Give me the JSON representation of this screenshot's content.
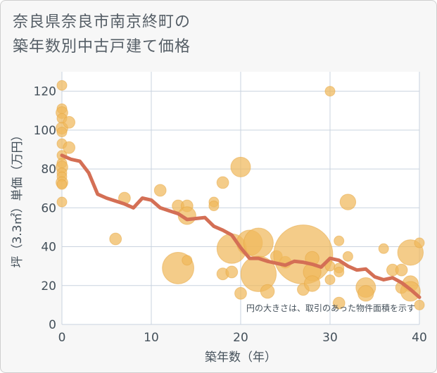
{
  "chart_data": {
    "type": "scatter",
    "title_lines": [
      "奈良県奈良市南京終町の",
      "築年数別中古戸建て価格"
    ],
    "xlabel": "築年数（年）",
    "ylabel": "坪（3.3㎡）単価（万円）",
    "xlim": [
      0,
      40
    ],
    "ylim": [
      0,
      130
    ],
    "x_ticks": [
      0,
      10,
      20,
      30,
      40
    ],
    "y_ticks": [
      0,
      20,
      40,
      60,
      80,
      100,
      120
    ],
    "note": "円の大きさは、取引のあった物件面積を示す",
    "colors": {
      "bubble": "#f0b85c",
      "line": "#d46f55",
      "grid": "#c9d3df",
      "text": "#44505a"
    },
    "bubbles": [
      {
        "x": 0,
        "y": 123,
        "s": 1.0
      },
      {
        "x": 0,
        "y": 111,
        "s": 1.0
      },
      {
        "x": 0,
        "y": 109,
        "s": 1.2
      },
      {
        "x": 0,
        "y": 106,
        "s": 1.0
      },
      {
        "x": 0,
        "y": 101,
        "s": 1.2
      },
      {
        "x": 0,
        "y": 99,
        "s": 1.0
      },
      {
        "x": 0,
        "y": 93,
        "s": 1.0
      },
      {
        "x": 0,
        "y": 87,
        "s": 1.0
      },
      {
        "x": 0,
        "y": 83,
        "s": 1.0
      },
      {
        "x": 0,
        "y": 81,
        "s": 1.2
      },
      {
        "x": 0,
        "y": 78,
        "s": 1.0
      },
      {
        "x": 0,
        "y": 76,
        "s": 1.0
      },
      {
        "x": 0,
        "y": 73,
        "s": 1.2
      },
      {
        "x": 0,
        "y": 72,
        "s": 1.0
      },
      {
        "x": 0,
        "y": 63,
        "s": 1.0
      },
      {
        "x": 0.8,
        "y": 104,
        "s": 1.2
      },
      {
        "x": 0.8,
        "y": 91,
        "s": 1.2
      },
      {
        "x": 6,
        "y": 44,
        "s": 1.2
      },
      {
        "x": 7,
        "y": 65,
        "s": 1.2
      },
      {
        "x": 11,
        "y": 69,
        "s": 1.2
      },
      {
        "x": 13,
        "y": 29,
        "s": 3.2
      },
      {
        "x": 13,
        "y": 61,
        "s": 1.2
      },
      {
        "x": 14,
        "y": 61,
        "s": 1.2
      },
      {
        "x": 14,
        "y": 56,
        "s": 1.8
      },
      {
        "x": 14,
        "y": 33,
        "s": 1.0
      },
      {
        "x": 17,
        "y": 63,
        "s": 1.0
      },
      {
        "x": 17,
        "y": 61,
        "s": 1.0
      },
      {
        "x": 18,
        "y": 73,
        "s": 1.2
      },
      {
        "x": 18,
        "y": 26,
        "s": 1.2
      },
      {
        "x": 19,
        "y": 27,
        "s": 1.2
      },
      {
        "x": 19,
        "y": 39,
        "s": 3.0
      },
      {
        "x": 20,
        "y": 81,
        "s": 2.0
      },
      {
        "x": 20,
        "y": 16,
        "s": 1.2
      },
      {
        "x": 21,
        "y": 42,
        "s": 2.6
      },
      {
        "x": 22,
        "y": 42,
        "s": 3.0
      },
      {
        "x": 22,
        "y": 26,
        "s": 3.6
      },
      {
        "x": 23,
        "y": 17,
        "s": 1.4
      },
      {
        "x": 24,
        "y": 35,
        "s": 1.2
      },
      {
        "x": 25,
        "y": 32,
        "s": 1.2
      },
      {
        "x": 27,
        "y": 36,
        "s": 6.0
      },
      {
        "x": 27,
        "y": 18,
        "s": 1.2
      },
      {
        "x": 28,
        "y": 34,
        "s": 1.4
      },
      {
        "x": 28,
        "y": 27,
        "s": 1.8
      },
      {
        "x": 28,
        "y": 21,
        "s": 1.6
      },
      {
        "x": 30,
        "y": 120,
        "s": 1.0
      },
      {
        "x": 30,
        "y": 30,
        "s": 1.0
      },
      {
        "x": 30,
        "y": 23,
        "s": 1.0
      },
      {
        "x": 31,
        "y": 43,
        "s": 1.0
      },
      {
        "x": 31,
        "y": 29,
        "s": 1.0
      },
      {
        "x": 31,
        "y": 27,
        "s": 1.0
      },
      {
        "x": 31,
        "y": 11,
        "s": 1.2
      },
      {
        "x": 32,
        "y": 63,
        "s": 1.6
      },
      {
        "x": 32,
        "y": 35,
        "s": 1.0
      },
      {
        "x": 34,
        "y": 19,
        "s": 2.0
      },
      {
        "x": 34,
        "y": 16,
        "s": 1.6
      },
      {
        "x": 36,
        "y": 39,
        "s": 1.0
      },
      {
        "x": 37,
        "y": 28,
        "s": 1.2
      },
      {
        "x": 38,
        "y": 28,
        "s": 1.2
      },
      {
        "x": 38,
        "y": 19,
        "s": 1.2
      },
      {
        "x": 39,
        "y": 37,
        "s": 2.6
      },
      {
        "x": 39,
        "y": 21,
        "s": 1.6
      },
      {
        "x": 39,
        "y": 17,
        "s": 2.0
      },
      {
        "x": 40,
        "y": 42,
        "s": 1.0
      },
      {
        "x": 40,
        "y": 10,
        "s": 1.0
      }
    ],
    "trend": {
      "x": [
        0,
        1,
        2,
        3,
        4,
        5,
        6,
        7,
        8,
        9,
        10,
        11,
        12,
        13,
        14,
        15,
        16,
        17,
        18,
        19,
        20,
        21,
        22,
        23,
        24,
        25,
        26,
        27,
        28,
        29,
        30,
        31,
        32,
        33,
        34,
        35,
        36,
        37,
        38,
        39,
        40
      ],
      "y": [
        87,
        85,
        84,
        78,
        67,
        65,
        63.5,
        62,
        60,
        65,
        64,
        60,
        58.5,
        57,
        54,
        54.5,
        55,
        50.5,
        48.5,
        46,
        39.5,
        34,
        34,
        32.5,
        31.5,
        30.5,
        32.5,
        32,
        31,
        29.5,
        34,
        33,
        30,
        28,
        28.5,
        24.5,
        23,
        24,
        21.5,
        18,
        14
      ]
    }
  }
}
